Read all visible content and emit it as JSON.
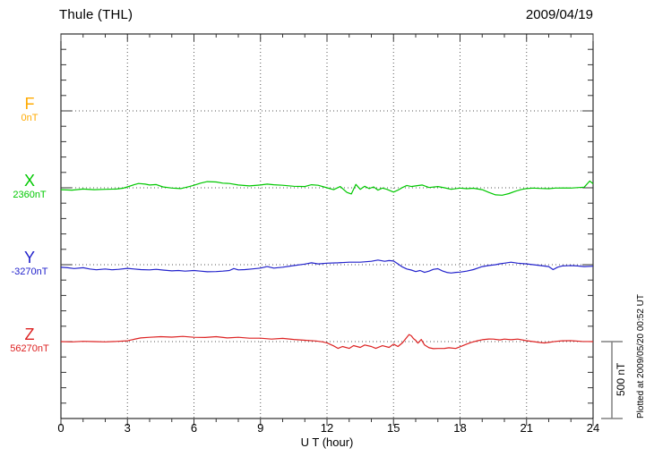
{
  "chart_data": {
    "type": "line",
    "title": "Thule (THL)",
    "date": "2009/04/19",
    "xlabel": "U T (hour)",
    "ylabel": "",
    "x_range": [
      0,
      24
    ],
    "x_ticks": [
      0,
      3,
      6,
      9,
      12,
      15,
      18,
      21,
      24
    ],
    "x_minor_step": 1,
    "grid": "dotted",
    "plotted_at": "Plotted at 2009/05/20 00:52 UT",
    "scale_bar": {
      "label": "500 nT",
      "nT": 500
    },
    "colors": {
      "grid": "#555555",
      "axis": "#000000",
      "tick": "#333333",
      "scale_bar": "#808080"
    },
    "unit": "nT",
    "series": [
      {
        "name": "F",
        "baseline_label": "0nT",
        "color": "#FFAA00",
        "points": []
      },
      {
        "name": "X",
        "baseline_label": "2360nT",
        "color": "#00C800",
        "points": [
          [
            0,
            -12
          ],
          [
            0.5,
            -15
          ],
          [
            1,
            -8
          ],
          [
            1.5,
            -12
          ],
          [
            2,
            -10
          ],
          [
            2.5,
            -8
          ],
          [
            2.8,
            -3
          ],
          [
            3,
            6
          ],
          [
            3.3,
            20
          ],
          [
            3.5,
            28
          ],
          [
            3.8,
            24
          ],
          [
            4,
            18
          ],
          [
            4.3,
            21
          ],
          [
            4.6,
            6
          ],
          [
            5,
            -2
          ],
          [
            5.4,
            -5
          ],
          [
            5.8,
            8
          ],
          [
            6,
            16
          ],
          [
            6.3,
            30
          ],
          [
            6.6,
            40
          ],
          [
            7,
            38
          ],
          [
            7.3,
            30
          ],
          [
            7.6,
            28
          ],
          [
            8,
            18
          ],
          [
            8.5,
            12
          ],
          [
            9,
            18
          ],
          [
            9.3,
            24
          ],
          [
            9.6,
            20
          ],
          [
            10,
            16
          ],
          [
            10.5,
            10
          ],
          [
            11,
            8
          ],
          [
            11.3,
            20
          ],
          [
            11.6,
            16
          ],
          [
            12,
            0
          ],
          [
            12.3,
            -12
          ],
          [
            12.6,
            8
          ],
          [
            12.9,
            -30
          ],
          [
            13.1,
            -40
          ],
          [
            13.3,
            22
          ],
          [
            13.5,
            -10
          ],
          [
            13.7,
            10
          ],
          [
            13.9,
            -5
          ],
          [
            14.1,
            6
          ],
          [
            14.3,
            -15
          ],
          [
            14.5,
            -2
          ],
          [
            14.7,
            -10
          ],
          [
            15,
            -28
          ],
          [
            15.2,
            -15
          ],
          [
            15.4,
            2
          ],
          [
            15.6,
            15
          ],
          [
            15.8,
            8
          ],
          [
            16,
            12
          ],
          [
            16.3,
            18
          ],
          [
            16.6,
            2
          ],
          [
            17,
            8
          ],
          [
            17.3,
            0
          ],
          [
            17.6,
            -10
          ],
          [
            18,
            -2
          ],
          [
            18.3,
            -6
          ],
          [
            18.6,
            -3
          ],
          [
            19,
            -12
          ],
          [
            19.3,
            -30
          ],
          [
            19.6,
            -46
          ],
          [
            19.9,
            -48
          ],
          [
            20.2,
            -38
          ],
          [
            20.5,
            -22
          ],
          [
            20.8,
            -10
          ],
          [
            21,
            -5
          ],
          [
            21.3,
            -2
          ],
          [
            21.6,
            -4
          ],
          [
            22,
            -6
          ],
          [
            22.3,
            -2
          ],
          [
            22.6,
            -1
          ],
          [
            23,
            -2
          ],
          [
            23.3,
            1
          ],
          [
            23.6,
            4
          ],
          [
            23.85,
            44
          ],
          [
            24,
            26
          ]
        ]
      },
      {
        "name": "Y",
        "baseline_label": "-3270nT",
        "color": "#2222CC",
        "points": [
          [
            0,
            -17
          ],
          [
            0.3,
            -20
          ],
          [
            0.6,
            -25
          ],
          [
            1,
            -20
          ],
          [
            1.3,
            -28
          ],
          [
            1.6,
            -33
          ],
          [
            2,
            -28
          ],
          [
            2.3,
            -33
          ],
          [
            2.6,
            -30
          ],
          [
            3,
            -24
          ],
          [
            3.3,
            -28
          ],
          [
            3.6,
            -32
          ],
          [
            4,
            -34
          ],
          [
            4.3,
            -30
          ],
          [
            4.6,
            -35
          ],
          [
            5,
            -40
          ],
          [
            5.3,
            -38
          ],
          [
            5.6,
            -42
          ],
          [
            6,
            -38
          ],
          [
            6.3,
            -42
          ],
          [
            6.6,
            -46
          ],
          [
            7,
            -45
          ],
          [
            7.3,
            -42
          ],
          [
            7.6,
            -38
          ],
          [
            7.8,
            -25
          ],
          [
            8,
            -34
          ],
          [
            8.3,
            -32
          ],
          [
            8.6,
            -28
          ],
          [
            9,
            -22
          ],
          [
            9.3,
            -12
          ],
          [
            9.6,
            -22
          ],
          [
            10,
            -16
          ],
          [
            10.5,
            -6
          ],
          [
            11,
            4
          ],
          [
            11.3,
            12
          ],
          [
            11.6,
            5
          ],
          [
            12,
            10
          ],
          [
            12.5,
            12
          ],
          [
            13,
            16
          ],
          [
            13.5,
            16
          ],
          [
            14,
            22
          ],
          [
            14.3,
            30
          ],
          [
            14.6,
            22
          ],
          [
            14.8,
            27
          ],
          [
            15,
            24
          ],
          [
            15.2,
            5
          ],
          [
            15.4,
            -15
          ],
          [
            15.6,
            -28
          ],
          [
            15.8,
            -35
          ],
          [
            16,
            -45
          ],
          [
            16.2,
            -38
          ],
          [
            16.4,
            -50
          ],
          [
            16.6,
            -42
          ],
          [
            16.8,
            -30
          ],
          [
            17,
            -26
          ],
          [
            17.2,
            -40
          ],
          [
            17.4,
            -50
          ],
          [
            17.6,
            -54
          ],
          [
            17.8,
            -50
          ],
          [
            18,
            -48
          ],
          [
            18.3,
            -42
          ],
          [
            18.6,
            -32
          ],
          [
            18.8,
            -22
          ],
          [
            19,
            -12
          ],
          [
            19.3,
            -5
          ],
          [
            19.6,
            0
          ],
          [
            19.8,
            6
          ],
          [
            20,
            10
          ],
          [
            20.3,
            16
          ],
          [
            20.6,
            10
          ],
          [
            21,
            5
          ],
          [
            21.3,
            0
          ],
          [
            21.6,
            -5
          ],
          [
            22,
            -12
          ],
          [
            22.2,
            -32
          ],
          [
            22.4,
            -16
          ],
          [
            22.6,
            -8
          ],
          [
            23,
            -6
          ],
          [
            23.3,
            -8
          ],
          [
            23.6,
            -12
          ],
          [
            24,
            -10
          ]
        ]
      },
      {
        "name": "Z",
        "baseline_label": "56270nT",
        "color": "#DD2222",
        "points": [
          [
            0,
            0
          ],
          [
            0.5,
            -2
          ],
          [
            1,
            2
          ],
          [
            1.5,
            0
          ],
          [
            2,
            -2
          ],
          [
            2.5,
            1
          ],
          [
            3,
            5
          ],
          [
            3.3,
            15
          ],
          [
            3.6,
            24
          ],
          [
            4,
            28
          ],
          [
            4.5,
            32
          ],
          [
            5,
            29
          ],
          [
            5.5,
            34
          ],
          [
            6,
            28
          ],
          [
            6.5,
            27
          ],
          [
            7,
            32
          ],
          [
            7.5,
            24
          ],
          [
            8,
            28
          ],
          [
            8.5,
            22
          ],
          [
            9,
            22
          ],
          [
            9.5,
            16
          ],
          [
            10,
            21
          ],
          [
            10.5,
            14
          ],
          [
            11,
            9
          ],
          [
            11.5,
            4
          ],
          [
            11.8,
            -2
          ],
          [
            12,
            -8
          ],
          [
            12.3,
            -28
          ],
          [
            12.5,
            -44
          ],
          [
            12.7,
            -32
          ],
          [
            13,
            -44
          ],
          [
            13.2,
            -26
          ],
          [
            13.5,
            -38
          ],
          [
            13.7,
            -22
          ],
          [
            14,
            -32
          ],
          [
            14.2,
            -44
          ],
          [
            14.5,
            -27
          ],
          [
            14.8,
            -38
          ],
          [
            15,
            -16
          ],
          [
            15.2,
            -32
          ],
          [
            15.4,
            -8
          ],
          [
            15.6,
            28
          ],
          [
            15.7,
            46
          ],
          [
            15.8,
            38
          ],
          [
            15.9,
            20
          ],
          [
            16,
            8
          ],
          [
            16.1,
            -10
          ],
          [
            16.25,
            14
          ],
          [
            16.4,
            -22
          ],
          [
            16.6,
            -40
          ],
          [
            16.8,
            -46
          ],
          [
            17,
            -45
          ],
          [
            17.3,
            -44
          ],
          [
            17.5,
            -40
          ],
          [
            17.8,
            -45
          ],
          [
            18,
            -34
          ],
          [
            18.3,
            -16
          ],
          [
            18.5,
            -5
          ],
          [
            18.8,
            6
          ],
          [
            19,
            12
          ],
          [
            19.3,
            17
          ],
          [
            19.5,
            16
          ],
          [
            19.8,
            11
          ],
          [
            20,
            16
          ],
          [
            20.3,
            12
          ],
          [
            20.6,
            16
          ],
          [
            21,
            6
          ],
          [
            21.3,
            0
          ],
          [
            21.6,
            -6
          ],
          [
            21.8,
            -9
          ],
          [
            22,
            -5
          ],
          [
            22.3,
            1
          ],
          [
            22.6,
            5
          ],
          [
            23,
            6
          ],
          [
            23.5,
            1
          ],
          [
            24,
            0
          ]
        ]
      }
    ]
  }
}
